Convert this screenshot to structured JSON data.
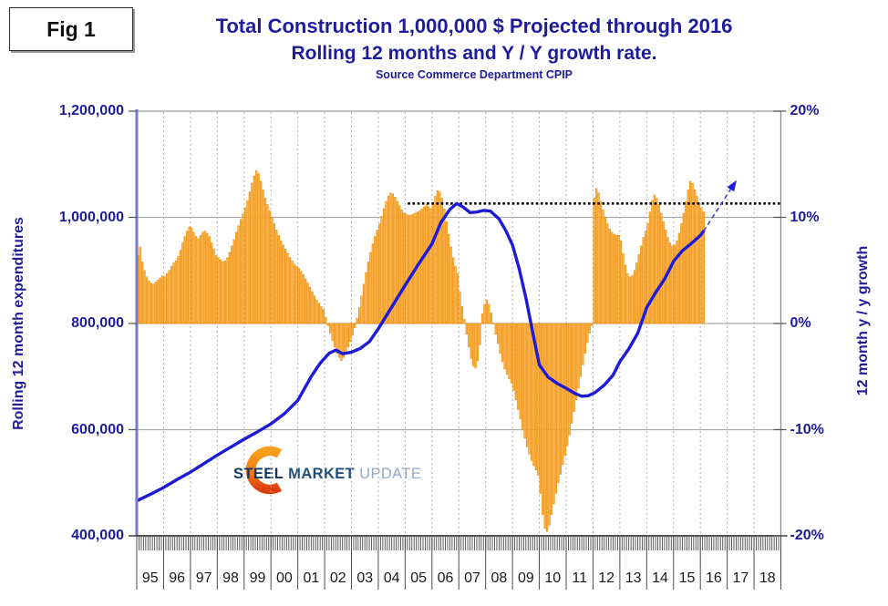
{
  "figure_label": "Fig 1",
  "title": {
    "line1": "Total Construction 1,000,000 $ Projected through 2016",
    "line2": "Rolling 12 months and Y / Y growth rate.",
    "source": "Source Commerce Department CPIP"
  },
  "logo": {
    "word1": "STEEL",
    "word2": "MARKET",
    "word3": "UPDATE"
  },
  "colors": {
    "navy_text": "#1c1c9c",
    "bar_fill": "#FDB44E",
    "bar_stroke": "#EF8E05",
    "line_blue": "#1b1bd8",
    "arrow_blue": "#4949e0",
    "dotted_reference": "#000000",
    "gridline": "#ababab",
    "dashed_gridline": "#b0b0b0",
    "left_spine": "#7a7ac9",
    "logo_crescent_top": "#f9a01b",
    "logo_crescent_bottom": "#dd3e0d"
  },
  "chart_data": {
    "type": "bar+line combo",
    "title": "Total Construction 1,000,000 $ Projected through 2016 — Rolling 12 months and Y / Y growth rate.",
    "source": "Source Commerce Department CPIP",
    "grid": "horizontal solid every 200,000; vertical dashed every year; legend none",
    "x_axis": {
      "start_year": 1995,
      "end_year": 2019,
      "year_labels": [
        "95",
        "96",
        "97",
        "98",
        "99",
        "00",
        "01",
        "02",
        "03",
        "04",
        "05",
        "06",
        "07",
        "08",
        "09",
        "10",
        "11",
        "12",
        "13",
        "14",
        "15",
        "16",
        "17",
        "18"
      ]
    },
    "left_axis": {
      "label": "Rolling 12 month expenditures",
      "min": 400000,
      "max": 1200000,
      "tick_values": [
        1200000,
        1000000,
        800000,
        600000,
        400000
      ],
      "tick_labels": [
        "1,200,000",
        "1,000,000",
        "800,000",
        "600,000",
        "400,000"
      ]
    },
    "right_axis": {
      "label": "12 month y / y growth",
      "min": -20,
      "max": 20,
      "tick_values": [
        20,
        10,
        0,
        -10,
        -20
      ],
      "tick_labels": [
        "20%",
        "10%",
        "0%",
        "-10%",
        "-20%"
      ]
    },
    "bars": {
      "series_name": "12 month y / y growth",
      "unit": "percent",
      "start": "1995-01",
      "values_by_year": {
        "1995": [
          6.4,
          7.2,
          5.8,
          5.0,
          4.4,
          4.0,
          3.8,
          3.7,
          3.9,
          4.1,
          4.3,
          4.5
        ],
        "1996": [
          4.4,
          4.7,
          5.0,
          5.4,
          5.7,
          5.9,
          6.3,
          6.9,
          7.6,
          8.2,
          8.7,
          9.1
        ],
        "1997": [
          9.0,
          8.6,
          8.2,
          8.0,
          8.3,
          8.6,
          8.7,
          8.5,
          8.2,
          7.6,
          7.0,
          6.4
        ],
        "1998": [
          6.2,
          6.0,
          5.8,
          5.9,
          6.2,
          6.7,
          7.3,
          7.9,
          8.6,
          9.2,
          9.8,
          10.3
        ],
        "1999": [
          10.9,
          11.6,
          12.4,
          13.2,
          13.9,
          14.4,
          14.1,
          13.4,
          12.6,
          11.8,
          11.2,
          10.6
        ],
        "2000": [
          10.0,
          9.4,
          8.8,
          8.3,
          7.8,
          7.4,
          7.0,
          6.6,
          6.2,
          5.9,
          5.6,
          5.4
        ],
        "2001": [
          5.2,
          4.9,
          4.6,
          4.2,
          3.8,
          3.4,
          3.0,
          2.6,
          2.2,
          1.9,
          1.6,
          1.3
        ],
        "2002": [
          0.6,
          -0.2,
          -0.9,
          -1.6,
          -2.2,
          -2.8,
          -3.2,
          -3.5,
          -3.2,
          -2.7,
          -2.2,
          -1.7
        ],
        "2003": [
          -1.1,
          -0.4,
          0.5,
          1.5,
          2.6,
          3.7,
          4.8,
          5.8,
          6.7,
          7.5,
          8.2,
          8.8
        ],
        "2004": [
          9.4,
          10.1,
          10.8,
          11.5,
          12.0,
          12.3,
          12.2,
          11.9,
          11.5,
          11.1,
          10.7,
          10.4
        ],
        "2005": [
          10.3,
          10.2,
          10.2,
          10.3,
          10.4,
          10.5,
          10.6,
          10.8,
          11.0,
          11.2,
          11.0,
          10.8
        ],
        "2006": [
          11.4,
          12.0,
          12.5,
          12.4,
          11.8,
          10.8,
          9.6,
          8.4,
          7.2,
          6.2,
          5.4,
          4.7
        ],
        "2007": [
          3.0,
          1.6,
          0.4,
          -1.0,
          -2.2,
          -3.3,
          -4.0,
          -4.2,
          -3.5,
          -2.0,
          0.9,
          1.8
        ],
        "2008": [
          2.2,
          1.8,
          1.0,
          0.0,
          -1.0,
          -1.9,
          -2.8,
          -3.6,
          -4.3,
          -4.8,
          -5.2,
          -5.6
        ],
        "2009": [
          -6.3,
          -7.2,
          -8.1,
          -9.0,
          -9.9,
          -10.8,
          -11.6,
          -12.3,
          -12.9,
          -13.4,
          -13.8,
          -14.3
        ],
        "2010": [
          -16.0,
          -18.0,
          -19.3,
          -19.6,
          -19.0,
          -18.0,
          -17.0,
          -16.0,
          -15.0,
          -14.2,
          -13.3,
          -12.4
        ],
        "2011": [
          -11.5,
          -10.5,
          -9.4,
          -8.3,
          -7.2,
          -6.1,
          -5.0,
          -3.9,
          -2.8,
          -1.8,
          -0.9,
          -0.2
        ],
        "2012": [
          11.8,
          12.7,
          12.3,
          11.5,
          10.7,
          10.0,
          9.4,
          8.9,
          8.6,
          8.4,
          8.3,
          8.3
        ],
        "2013": [
          7.8,
          6.6,
          5.5,
          4.7,
          4.4,
          4.5,
          5.0,
          5.7,
          6.5,
          7.3,
          8.1,
          8.7
        ],
        "2014": [
          9.4,
          10.5,
          11.6,
          12.1,
          11.8,
          11.2,
          10.4,
          9.6,
          8.8,
          8.1,
          7.6,
          7.3
        ],
        "2015": [
          7.4,
          7.8,
          8.5,
          9.4,
          10.4,
          11.5,
          12.6,
          13.4,
          13.2,
          12.6,
          12.0,
          11.4
        ],
        "2016": [
          10.9,
          10.5
        ]
      }
    },
    "line": {
      "series_name": "Rolling 12 month expenditures",
      "unit": "left-axis dollars (thousands)",
      "points": [
        [
          1995.0,
          466000
        ],
        [
          1995.5,
          478000
        ],
        [
          1996.0,
          491000
        ],
        [
          1996.5,
          506000
        ],
        [
          1997.0,
          520000
        ],
        [
          1997.5,
          536000
        ],
        [
          1998.0,
          552000
        ],
        [
          1998.5,
          567000
        ],
        [
          1999.0,
          582000
        ],
        [
          1999.5,
          596000
        ],
        [
          2000.0,
          611000
        ],
        [
          2000.5,
          630000
        ],
        [
          2001.0,
          655000
        ],
        [
          2001.5,
          700000
        ],
        [
          2001.83,
          725000
        ],
        [
          2002.17,
          744000
        ],
        [
          2002.42,
          750000
        ],
        [
          2002.67,
          743000
        ],
        [
          2003.0,
          746000
        ],
        [
          2003.33,
          753000
        ],
        [
          2003.67,
          766000
        ],
        [
          2004.0,
          790000
        ],
        [
          2004.5,
          831000
        ],
        [
          2005.0,
          872000
        ],
        [
          2005.5,
          912000
        ],
        [
          2006.0,
          950000
        ],
        [
          2006.33,
          990000
        ],
        [
          2006.67,
          1015000
        ],
        [
          2006.92,
          1026000
        ],
        [
          2007.17,
          1019000
        ],
        [
          2007.42,
          1009000
        ],
        [
          2007.67,
          1010000
        ],
        [
          2007.92,
          1013000
        ],
        [
          2008.17,
          1012000
        ],
        [
          2008.5,
          997000
        ],
        [
          2008.75,
          975000
        ],
        [
          2009.0,
          948000
        ],
        [
          2009.25,
          903000
        ],
        [
          2009.5,
          848000
        ],
        [
          2009.75,
          784000
        ],
        [
          2010.0,
          722000
        ],
        [
          2010.33,
          699000
        ],
        [
          2010.67,
          687000
        ],
        [
          2011.0,
          678000
        ],
        [
          2011.33,
          668000
        ],
        [
          2011.58,
          663000
        ],
        [
          2011.83,
          664000
        ],
        [
          2012.08,
          670000
        ],
        [
          2012.42,
          684000
        ],
        [
          2012.75,
          703000
        ],
        [
          2013.0,
          728000
        ],
        [
          2013.33,
          752000
        ],
        [
          2013.67,
          782000
        ],
        [
          2014.0,
          830000
        ],
        [
          2014.33,
          858000
        ],
        [
          2014.67,
          884000
        ],
        [
          2015.0,
          917000
        ],
        [
          2015.33,
          937000
        ],
        [
          2015.67,
          951000
        ],
        [
          2016.0,
          966000
        ],
        [
          2016.12,
          974000
        ]
      ]
    },
    "reference_dotted_line": {
      "value": 1026000,
      "from_x": 2005.1,
      "to_x": 2019.0
    },
    "projection_arrow": {
      "from": [
        2016.12,
        974000
      ],
      "to": [
        2017.35,
        1070000
      ]
    }
  }
}
